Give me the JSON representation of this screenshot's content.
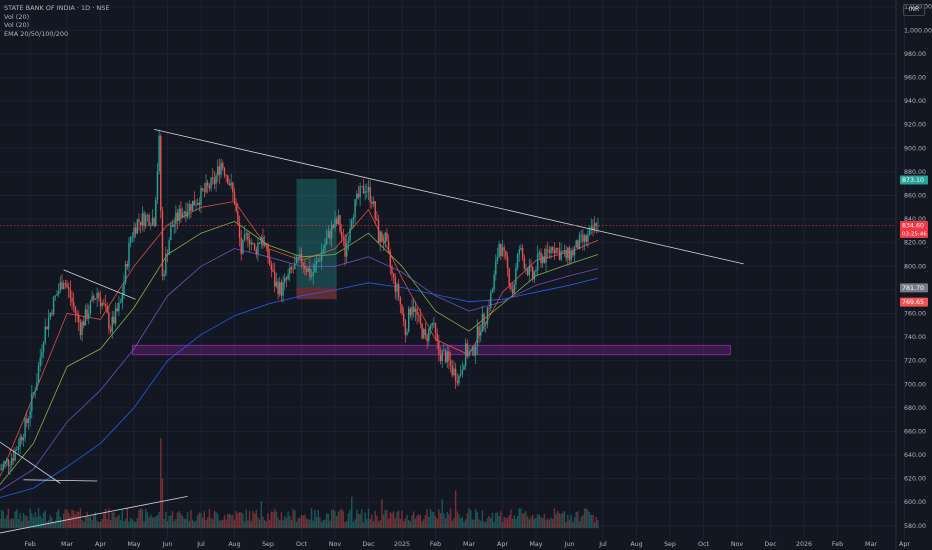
{
  "legend": {
    "title": "STATE BANK OF INDIA · 1D · NSE",
    "vol1": "Vol (20)",
    "vol2": "Vol (20)",
    "ema": "EMA 20/50/100/200"
  },
  "currency": "INR",
  "colors": {
    "background": "#131722",
    "grid": "#1c2030",
    "up": "#26a69a",
    "down": "#ef5350",
    "ema20": "#ef5350",
    "ema50": "#8bc34a",
    "ema100": "#7e57c2",
    "ema200": "#2962ff",
    "zone": "#9c27b0",
    "trendline": "#d1d4dc"
  },
  "chart_data": {
    "type": "candlestick",
    "y_ticks": [
      580,
      600,
      620,
      640,
      660,
      680,
      700,
      720,
      740,
      760,
      780,
      800,
      820,
      840,
      860,
      880,
      900,
      920,
      940,
      960,
      980,
      1000,
      1020
    ],
    "ylim": [
      568,
      1024
    ],
    "x_ticks": [
      {
        "label": "Feb",
        "t": 0.9
      },
      {
        "label": "Mar",
        "t": 2.0
      },
      {
        "label": "Apr",
        "t": 3.0
      },
      {
        "label": "May",
        "t": 4.0
      },
      {
        "label": "Jun",
        "t": 5.0
      },
      {
        "label": "Jul",
        "t": 6.0
      },
      {
        "label": "Aug",
        "t": 7.0
      },
      {
        "label": "Sep",
        "t": 8.0
      },
      {
        "label": "Oct",
        "t": 9.0
      },
      {
        "label": "Nov",
        "t": 10.0
      },
      {
        "label": "Dec",
        "t": 11.0
      },
      {
        "label": "2025",
        "t": 12.0
      },
      {
        "label": "Feb",
        "t": 13.0
      },
      {
        "label": "Mar",
        "t": 14.0
      },
      {
        "label": "Apr",
        "t": 15.0
      },
      {
        "label": "May",
        "t": 16.0
      },
      {
        "label": "Jun",
        "t": 17.0
      },
      {
        "label": "Jul",
        "t": 18.0
      },
      {
        "label": "Aug",
        "t": 19.0
      },
      {
        "label": "Sep",
        "t": 20.0
      },
      {
        "label": "Oct",
        "t": 21.0
      },
      {
        "label": "Nov",
        "t": 22.0
      },
      {
        "label": "Dec",
        "t": 23.0
      },
      {
        "label": "2026",
        "t": 24.0
      },
      {
        "label": "Feb",
        "t": 25.0
      },
      {
        "label": "Mar",
        "t": 26.0
      },
      {
        "label": "Apr",
        "t": 27.0
      }
    ],
    "price_path": [
      [
        0.0,
        628
      ],
      [
        0.4,
        640
      ],
      [
        0.8,
        668
      ],
      [
        1.1,
        705
      ],
      [
        1.3,
        742
      ],
      [
        1.6,
        770
      ],
      [
        1.9,
        790
      ],
      [
        2.1,
        774
      ],
      [
        2.4,
        748
      ],
      [
        2.6,
        760
      ],
      [
        2.9,
        778
      ],
      [
        3.1,
        765
      ],
      [
        3.3,
        748
      ],
      [
        3.6,
        768
      ],
      [
        3.9,
        825
      ],
      [
        4.1,
        838
      ],
      [
        4.4,
        842
      ],
      [
        4.6,
        840
      ],
      [
        4.75,
        905
      ],
      [
        4.85,
        790
      ],
      [
        5.1,
        832
      ],
      [
        5.4,
        846
      ],
      [
        5.7,
        852
      ],
      [
        6.0,
        860
      ],
      [
        6.4,
        872
      ],
      [
        6.6,
        888
      ],
      [
        6.8,
        876
      ],
      [
        7.0,
        856
      ],
      [
        7.2,
        812
      ],
      [
        7.4,
        828
      ],
      [
        7.6,
        812
      ],
      [
        7.8,
        826
      ],
      [
        8.0,
        808
      ],
      [
        8.2,
        786
      ],
      [
        8.4,
        780
      ],
      [
        8.7,
        796
      ],
      [
        9.0,
        806
      ],
      [
        9.3,
        792
      ],
      [
        9.6,
        812
      ],
      [
        9.9,
        832
      ],
      [
        10.1,
        838
      ],
      [
        10.3,
        812
      ],
      [
        10.5,
        845
      ],
      [
        10.7,
        858
      ],
      [
        10.9,
        868
      ],
      [
        11.1,
        858
      ],
      [
        11.3,
        825
      ],
      [
        11.5,
        822
      ],
      [
        11.7,
        792
      ],
      [
        11.9,
        775
      ],
      [
        12.1,
        745
      ],
      [
        12.3,
        770
      ],
      [
        12.5,
        752
      ],
      [
        12.7,
        738
      ],
      [
        12.9,
        752
      ],
      [
        13.1,
        726
      ],
      [
        13.3,
        724
      ],
      [
        13.5,
        712
      ],
      [
        13.7,
        706
      ],
      [
        13.9,
        728
      ],
      [
        14.1,
        725
      ],
      [
        14.3,
        748
      ],
      [
        14.5,
        758
      ],
      [
        14.7,
        780
      ],
      [
        14.9,
        820
      ],
      [
        15.1,
        802
      ],
      [
        15.3,
        778
      ],
      [
        15.5,
        815
      ],
      [
        15.7,
        800
      ],
      [
        15.9,
        790
      ],
      [
        16.1,
        808
      ],
      [
        16.3,
        808
      ],
      [
        16.5,
        818
      ],
      [
        16.7,
        812
      ],
      [
        16.9,
        808
      ],
      [
        17.1,
        812
      ],
      [
        17.3,
        820
      ],
      [
        17.5,
        822
      ],
      [
        17.7,
        830
      ],
      [
        17.85,
        838
      ]
    ],
    "ema_series": [
      {
        "color": "#ef5350",
        "values": [
          [
            0,
            622
          ],
          [
            1,
            690
          ],
          [
            2,
            760
          ],
          [
            3,
            755
          ],
          [
            4,
            800
          ],
          [
            5,
            835
          ],
          [
            6,
            850
          ],
          [
            7,
            855
          ],
          [
            8,
            815
          ],
          [
            9,
            805
          ],
          [
            10,
            815
          ],
          [
            11,
            848
          ],
          [
            12,
            790
          ],
          [
            13,
            738
          ],
          [
            14,
            725
          ],
          [
            15,
            778
          ],
          [
            16,
            805
          ],
          [
            17,
            812
          ],
          [
            17.85,
            822
          ]
        ]
      },
      {
        "color": "#8bc34a",
        "values": [
          [
            0,
            615
          ],
          [
            1,
            650
          ],
          [
            2,
            715
          ],
          [
            3,
            730
          ],
          [
            4,
            765
          ],
          [
            5,
            810
          ],
          [
            6,
            828
          ],
          [
            7,
            838
          ],
          [
            8,
            818
          ],
          [
            9,
            808
          ],
          [
            10,
            810
          ],
          [
            11,
            828
          ],
          [
            12,
            800
          ],
          [
            13,
            762
          ],
          [
            14,
            745
          ],
          [
            15,
            768
          ],
          [
            16,
            792
          ],
          [
            17,
            802
          ],
          [
            17.85,
            810
          ]
        ]
      },
      {
        "color": "#7e57c2",
        "values": [
          [
            0,
            610
          ],
          [
            1,
            628
          ],
          [
            2,
            668
          ],
          [
            3,
            695
          ],
          [
            4,
            730
          ],
          [
            5,
            775
          ],
          [
            6,
            800
          ],
          [
            7,
            815
          ],
          [
            8,
            808
          ],
          [
            9,
            800
          ],
          [
            10,
            800
          ],
          [
            11,
            808
          ],
          [
            12,
            795
          ],
          [
            13,
            775
          ],
          [
            14,
            762
          ],
          [
            15,
            770
          ],
          [
            16,
            784
          ],
          [
            17,
            792
          ],
          [
            17.85,
            798
          ]
        ]
      },
      {
        "color": "#2962ff",
        "values": [
          [
            0,
            604
          ],
          [
            1,
            612
          ],
          [
            2,
            630
          ],
          [
            3,
            650
          ],
          [
            4,
            680
          ],
          [
            5,
            720
          ],
          [
            6,
            742
          ],
          [
            7,
            758
          ],
          [
            8,
            768
          ],
          [
            9,
            775
          ],
          [
            10,
            780
          ],
          [
            11,
            786
          ],
          [
            12,
            782
          ],
          [
            13,
            776
          ],
          [
            14,
            770
          ],
          [
            15,
            772
          ],
          [
            16,
            778
          ],
          [
            17,
            784
          ],
          [
            17.85,
            790
          ]
        ]
      }
    ],
    "trendlines": [
      {
        "from": [
          4.6,
          916
        ],
        "to": [
          22.2,
          802
        ],
        "color": "#d1d4dc"
      },
      {
        "from": [
          1.9,
          797
        ],
        "to": [
          4.05,
          772
        ],
        "color": "#d1d4dc"
      },
      {
        "from": [
          0,
          651
        ],
        "to": [
          1.8,
          616
        ],
        "color": "#d1d4dc"
      },
      {
        "from": [
          0.7,
          619
        ],
        "to": [
          2.9,
          618
        ],
        "color": "#d1d4dc"
      },
      {
        "from": [
          0,
          574
        ],
        "to": [
          5.6,
          605
        ],
        "color": "#d1d4dc"
      }
    ],
    "zone": {
      "t0": 3.95,
      "t1": 21.8,
      "y0": 733,
      "y1": 725,
      "color": "#9c27b0"
    },
    "position_box": {
      "t0": 8.85,
      "t1": 10.05,
      "entry": 782,
      "target": 874,
      "stop": 772
    },
    "price_labels": [
      {
        "value": 873.1,
        "text": "873.10",
        "color": "#26a69a"
      },
      {
        "value": 834.6,
        "text": "834.60",
        "sub": "03:25:46",
        "color": "#f23645"
      },
      {
        "value": 781.7,
        "text": "781.70",
        "color": "#787b86"
      },
      {
        "value": 769.65,
        "text": "769.65",
        "color": "#ef5350"
      }
    ],
    "current_price": 834.6,
    "volume": {
      "base": 578,
      "max_height": 90,
      "spikes": [
        [
          4.8,
          1.0
        ],
        [
          4.85,
          0.55
        ],
        [
          7.8,
          0.3
        ],
        [
          10.5,
          0.35
        ],
        [
          11.4,
          0.32
        ],
        [
          13.2,
          0.32
        ],
        [
          13.6,
          0.42
        ],
        [
          14.0,
          0.22
        ],
        [
          17.5,
          0.22
        ]
      ]
    }
  }
}
